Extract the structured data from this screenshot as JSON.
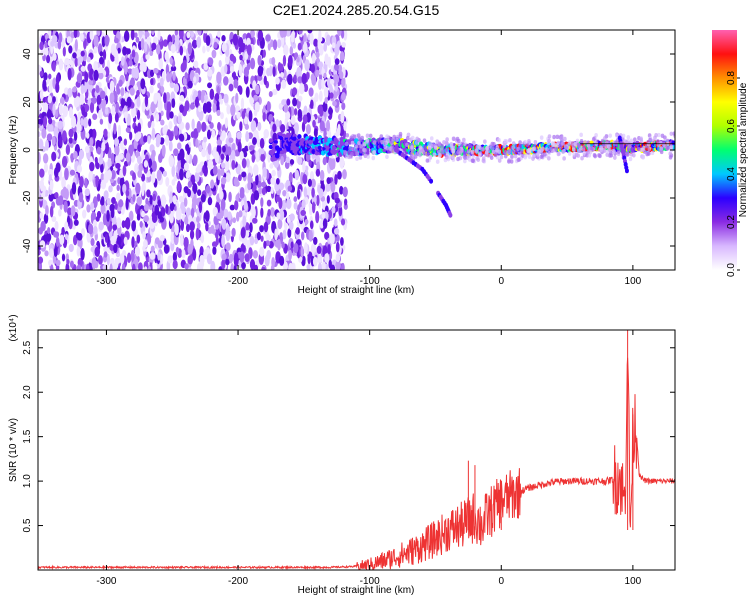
{
  "figure": {
    "title": "C2E1.2024.285.20.54.G15"
  },
  "chart_data": [
    {
      "type": "heatmap",
      "title": "C2E1.2024.285.20.54.G15",
      "xlabel": "Height of straight line (km)",
      "ylabel": "Frequency (Hz)",
      "xlim": [
        -352,
        132
      ],
      "ylim": [
        -50,
        50
      ],
      "x_ticks": [
        -300,
        -200,
        -100,
        0,
        100
      ],
      "y_ticks": [
        -40,
        -20,
        0,
        20,
        40
      ],
      "noise_region_x": [
        -352,
        -118
      ],
      "ridge_frequency_hz": [
        [
          -170,
          3
        ],
        [
          -140,
          2
        ],
        [
          -110,
          1
        ],
        [
          -80,
          2
        ],
        [
          -50,
          0
        ],
        [
          -20,
          0
        ],
        [
          0,
          0
        ],
        [
          40,
          1
        ],
        [
          80,
          2
        ],
        [
          95,
          1
        ],
        [
          132,
          2
        ]
      ],
      "branches": [
        {
          "x": [
            -80,
            -70,
            -60,
            -52
          ],
          "y": [
            0,
            -4,
            -8,
            -14
          ]
        },
        {
          "x": [
            -48,
            -42,
            -38
          ],
          "y": [
            -18,
            -23,
            -28
          ]
        },
        {
          "x": [
            90,
            93,
            96
          ],
          "y": [
            5,
            -2,
            -10
          ]
        }
      ],
      "colorbar": {
        "label": "Normalized spectral amplitude",
        "ticks": [
          0.0,
          0.2,
          0.4,
          0.6,
          0.8
        ],
        "range": [
          0,
          1
        ],
        "colors": [
          "#ffffff",
          "#d8b8ff",
          "#8a2be2",
          "#2c00ff",
          "#00c8ff",
          "#00ff70",
          "#b0ff00",
          "#ffff00",
          "#ff9000",
          "#ff1010",
          "#ff60b0"
        ]
      },
      "grid": false,
      "legend": "none"
    },
    {
      "type": "line",
      "xlabel": "Height of straight line (km)",
      "ylabel": "SNR (10 * v/v)",
      "y_multiplier": "(x10⁴)",
      "xlim": [
        -352,
        132
      ],
      "ylim": [
        0,
        2.7
      ],
      "x_ticks": [
        -300,
        -200,
        -100,
        0,
        100
      ],
      "y_ticks": [
        0.5,
        1.0,
        1.5,
        2.0,
        2.5
      ],
      "color": "#ee3333",
      "x": [
        -352,
        -300,
        -200,
        -130,
        -110,
        -100,
        -90,
        -80,
        -70,
        -60,
        -50,
        -40,
        -30,
        -25,
        -20,
        -15,
        -10,
        -5,
        0,
        10,
        20,
        30,
        40,
        50,
        60,
        70,
        80,
        85,
        90,
        92,
        94,
        96,
        98,
        100,
        102,
        105,
        110,
        120,
        132
      ],
      "y": [
        0.03,
        0.03,
        0.03,
        0.03,
        0.04,
        0.06,
        0.1,
        0.15,
        0.2,
        0.27,
        0.35,
        0.45,
        0.5,
        0.55,
        0.6,
        0.5,
        0.62,
        0.7,
        0.78,
        0.85,
        0.92,
        0.96,
        0.99,
        1.0,
        1.0,
        1.0,
        1.0,
        1.02,
        1.05,
        0.9,
        0.7,
        2.7,
        0.4,
        1.5,
        1.7,
        1.05,
        1.0,
        1.0,
        1.0
      ],
      "spikes": [
        [
          -25,
          1.23
        ],
        [
          -20,
          1.18
        ],
        [
          0,
          0.6
        ],
        [
          96,
          2.7
        ],
        [
          100,
          1.75
        ]
      ],
      "grid": false,
      "legend": "none"
    }
  ]
}
